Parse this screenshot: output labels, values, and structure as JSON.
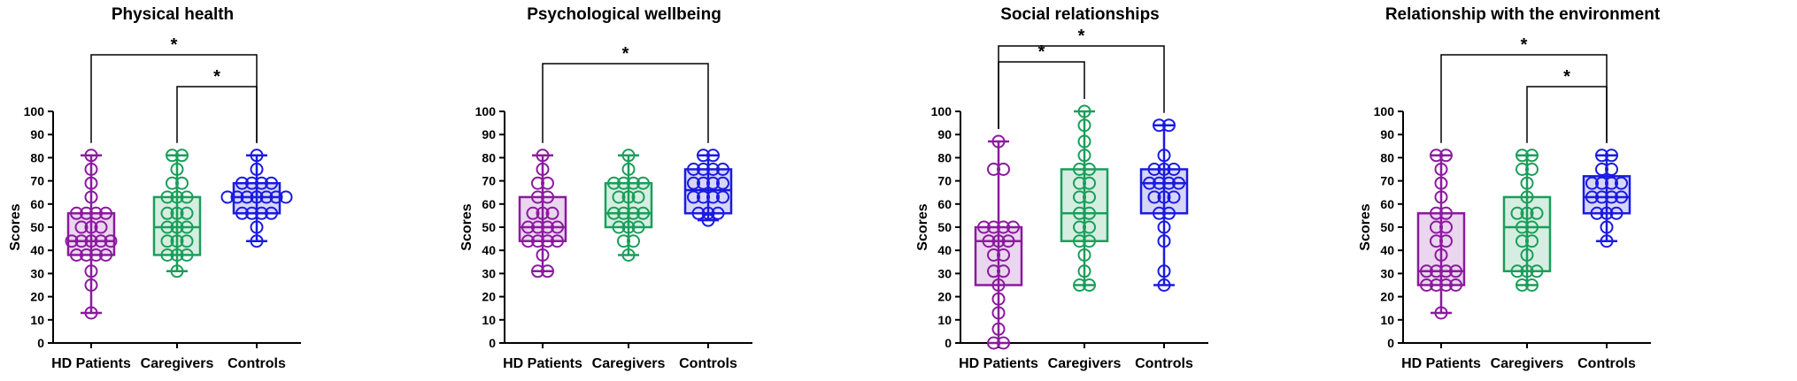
{
  "figure": {
    "y_ticks": [
      "0",
      "10",
      "20",
      "30",
      "40",
      "50",
      "60",
      "70",
      "80",
      "90",
      "100"
    ],
    "colors": {
      "hd": "#8B1A9E",
      "caregivers": "#1A9E5A",
      "controls": "#1A1AE0",
      "axis": "#000000"
    }
  },
  "chart_data": [
    {
      "type": "box",
      "title": "Physical health",
      "ylabel": "Scores",
      "ylim": [
        0,
        100
      ],
      "grid": false,
      "categories": [
        "HD Patients",
        "Caregivers",
        "Controls"
      ],
      "boxes": [
        {
          "name": "HD Patients",
          "whisker_low": 13,
          "q1": 38,
          "median": 44,
          "q3": 56,
          "whisker_high": 81,
          "points": [
            13,
            25,
            31,
            38,
            38,
            38,
            38,
            44,
            44,
            44,
            44,
            44,
            50,
            50,
            50,
            56,
            56,
            56,
            56,
            63,
            69,
            75,
            81
          ]
        },
        {
          "name": "Caregivers",
          "whisker_low": 31,
          "q1": 38,
          "median": 50,
          "q3": 63,
          "whisker_high": 81,
          "points": [
            31,
            38,
            38,
            38,
            44,
            44,
            44,
            50,
            50,
            50,
            56,
            56,
            56,
            63,
            63,
            63,
            69,
            69,
            75,
            81,
            81
          ]
        },
        {
          "name": "Controls",
          "whisker_low": 44,
          "q1": 56,
          "median": 63,
          "q3": 69,
          "whisker_high": 81,
          "points": [
            44,
            50,
            56,
            56,
            56,
            56,
            63,
            63,
            63,
            63,
            63,
            63,
            63,
            69,
            69,
            69,
            69,
            75,
            81
          ]
        }
      ],
      "significance": [
        {
          "pair": [
            "HD Patients",
            "Controls"
          ],
          "label": "*"
        },
        {
          "pair": [
            "Caregivers",
            "Controls"
          ],
          "label": "*"
        }
      ]
    },
    {
      "type": "box",
      "title": "Psychological wellbeing",
      "ylabel": "Scores",
      "ylim": [
        0,
        100
      ],
      "grid": false,
      "categories": [
        "HD Patients",
        "Caregivers",
        "Controls"
      ],
      "boxes": [
        {
          "name": "HD Patients",
          "whisker_low": 31,
          "q1": 44,
          "median": 50,
          "q3": 63,
          "whisker_high": 81,
          "points": [
            31,
            31,
            38,
            44,
            44,
            44,
            44,
            50,
            50,
            50,
            50,
            56,
            56,
            56,
            63,
            63,
            69,
            69,
            75,
            81
          ]
        },
        {
          "name": "Caregivers",
          "whisker_low": 38,
          "q1": 50,
          "median": 56,
          "q3": 69,
          "whisker_high": 81,
          "points": [
            38,
            44,
            44,
            50,
            50,
            50,
            56,
            56,
            56,
            56,
            63,
            63,
            63,
            69,
            69,
            69,
            69,
            75,
            81
          ]
        },
        {
          "name": "Controls",
          "whisker_low": 53,
          "q1": 56,
          "median": 66,
          "q3": 75,
          "whisker_high": 81,
          "points": [
            53,
            56,
            56,
            56,
            63,
            63,
            63,
            63,
            69,
            69,
            69,
            69,
            75,
            75,
            75,
            75,
            81,
            81
          ]
        }
      ],
      "significance": [
        {
          "pair": [
            "HD Patients",
            "Controls"
          ],
          "label": "*"
        }
      ]
    },
    {
      "type": "box",
      "title": "Social relationships",
      "ylabel": "Scores",
      "ylim": [
        0,
        100
      ],
      "grid": false,
      "categories": [
        "HD Patients",
        "Caregivers",
        "Controls"
      ],
      "boxes": [
        {
          "name": "HD Patients",
          "whisker_low": 0,
          "q1": 25,
          "median": 44,
          "q3": 50,
          "whisker_high": 87,
          "points": [
            0,
            0,
            6,
            13,
            19,
            25,
            31,
            31,
            38,
            38,
            44,
            44,
            44,
            50,
            50,
            50,
            50,
            75,
            75,
            87
          ]
        },
        {
          "name": "Caregivers",
          "whisker_low": 25,
          "q1": 44,
          "median": 56,
          "q3": 75,
          "whisker_high": 100,
          "points": [
            25,
            25,
            31,
            38,
            44,
            44,
            50,
            50,
            56,
            56,
            63,
            63,
            69,
            69,
            75,
            75,
            81,
            87,
            94,
            100
          ]
        },
        {
          "name": "Controls",
          "whisker_low": 25,
          "q1": 56,
          "median": 69,
          "q3": 75,
          "whisker_high": 94,
          "points": [
            25,
            31,
            44,
            50,
            56,
            56,
            63,
            63,
            63,
            69,
            69,
            69,
            69,
            75,
            75,
            75,
            81,
            94,
            94
          ]
        }
      ],
      "significance": [
        {
          "pair": [
            "HD Patients",
            "Caregivers"
          ],
          "label": "*"
        },
        {
          "pair": [
            "HD Patients",
            "Controls"
          ],
          "label": "*"
        }
      ]
    },
    {
      "type": "box",
      "title": "Relationship with the environment",
      "ylabel": "Scores",
      "ylim": [
        0,
        100
      ],
      "grid": false,
      "categories": [
        "HD Patients",
        "Caregivers",
        "Controls"
      ],
      "boxes": [
        {
          "name": "HD Patients",
          "whisker_low": 13,
          "q1": 25,
          "median": 31,
          "q3": 56,
          "whisker_high": 81,
          "points": [
            13,
            25,
            25,
            25,
            25,
            31,
            31,
            31,
            31,
            38,
            44,
            44,
            50,
            50,
            56,
            56,
            63,
            69,
            75,
            81,
            81
          ]
        },
        {
          "name": "Caregivers",
          "whisker_low": 25,
          "q1": 31,
          "median": 50,
          "q3": 63,
          "whisker_high": 81,
          "points": [
            25,
            25,
            31,
            31,
            31,
            38,
            44,
            44,
            50,
            50,
            56,
            56,
            56,
            63,
            69,
            75,
            75,
            81,
            81
          ]
        },
        {
          "name": "Controls",
          "whisker_low": 44,
          "q1": 56,
          "median": 63,
          "q3": 72,
          "whisker_high": 81,
          "points": [
            44,
            50,
            56,
            56,
            56,
            63,
            63,
            63,
            63,
            69,
            69,
            69,
            69,
            75,
            75,
            81,
            81
          ]
        }
      ],
      "significance": [
        {
          "pair": [
            "HD Patients",
            "Controls"
          ],
          "label": "*"
        },
        {
          "pair": [
            "Caregivers",
            "Controls"
          ],
          "label": "*"
        }
      ]
    }
  ]
}
